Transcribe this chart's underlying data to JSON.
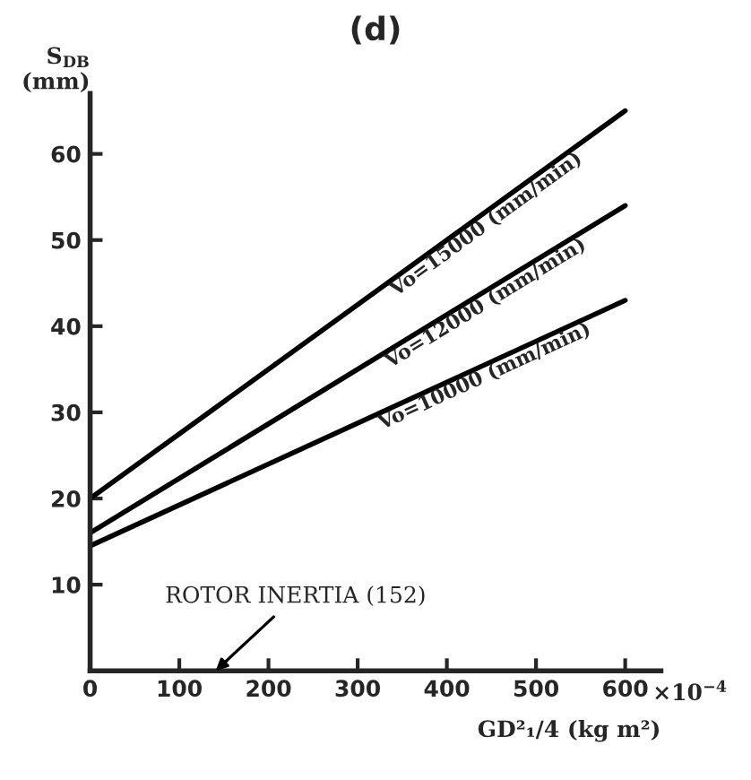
{
  "chart_data": {
    "type": "line",
    "title": "(d)",
    "ylabel": "S$_{DB}$\n(mm)",
    "xlabel": "×10$^{−4}$\nGD²₁/4 (kg m²)",
    "x": [
      0,
      600
    ],
    "series": [
      {
        "name": "Vo=15000 (mm/min)",
        "color": "#000000",
        "values": [
          20,
          65
        ]
      },
      {
        "name": "Vo=12000 (mm/min)",
        "color": "#000000",
        "values": [
          16,
          54
        ]
      },
      {
        "name": "Vo=10000 (mm/min)",
        "color": "#000000",
        "values": [
          14.5,
          43
        ]
      }
    ],
    "xlim": [
      0,
      640
    ],
    "ylim": [
      0,
      67
    ],
    "xticks": [
      0,
      100,
      200,
      300,
      400,
      500,
      600
    ],
    "yticks": [
      10,
      20,
      30,
      40,
      50,
      60
    ],
    "annotations": [
      "ROTOR INERTIA (152)"
    ],
    "grid": false,
    "legend": false,
    "marker": "none",
    "line_style": "solid"
  }
}
